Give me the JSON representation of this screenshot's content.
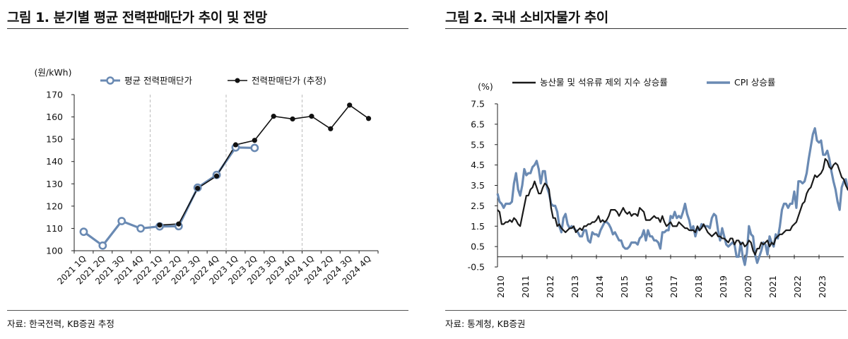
{
  "left": {
    "title": "그림 1. 분기별 평균 전력판매단가 추이 및 전망",
    "source": "자료: 한국전력, KB증권 추정",
    "chart_data": {
      "type": "line",
      "unit_label": "(원/kWh)",
      "categories": [
        "2021 1Q",
        "2021 2Q",
        "2021 3Q",
        "2021 4Q",
        "2022 1Q",
        "2022 2Q",
        "2022 3Q",
        "2022 4Q",
        "2023 1Q",
        "2023 2Q",
        "2023 3Q",
        "2023 4Q",
        "2024 1Q",
        "2024 2Q",
        "2024 3Q",
        "2024 4Q"
      ],
      "ylim": [
        100,
        170
      ],
      "yticks": [
        100,
        110,
        120,
        130,
        140,
        150,
        160,
        170
      ],
      "vlines_after_index": [
        3,
        7,
        11
      ],
      "series": [
        {
          "name": "평균 전력판매단가",
          "color": "#6a8ab3",
          "values": [
            108.5,
            102.3,
            113.3,
            110.0,
            110.9,
            111.0,
            128.3,
            134.0,
            146.3,
            146.1,
            null,
            null,
            null,
            null,
            null,
            null
          ]
        },
        {
          "name": "전력판매단가 (추정)",
          "color": "#111111",
          "values": [
            null,
            null,
            null,
            null,
            111.5,
            112.0,
            128.0,
            133.5,
            147.5,
            149.5,
            160.3,
            159.1,
            160.3,
            154.7,
            165.3,
            159.3
          ]
        }
      ]
    }
  },
  "right": {
    "title": "그림 2. 국내 소비자물가 추이",
    "source": "자료: 통계청, KB증권",
    "chart_data": {
      "type": "line",
      "unit_label": "(%)",
      "x_start": "2010-01",
      "x_step": "month",
      "x_labels": [
        "2010",
        "2011",
        "2012",
        "2013",
        "2014",
        "2015",
        "2016",
        "2017",
        "2018",
        "2019",
        "2020",
        "2021",
        "2022",
        "2023"
      ],
      "ylim": [
        -0.5,
        7.5
      ],
      "yticks": [
        "-0.5",
        "0.5",
        "1.5",
        "2.5",
        "3.5",
        "4.5",
        "5.5",
        "6.5",
        "7.5"
      ],
      "series": [
        {
          "name": "CPI 상승률",
          "color": "#6a8ab3",
          "values": [
            3.1,
            2.7,
            2.6,
            2.4,
            2.6,
            2.6,
            2.6,
            2.7,
            3.6,
            4.1,
            3.3,
            3.0,
            3.5,
            4.3,
            4.0,
            4.1,
            4.1,
            4.4,
            4.5,
            4.7,
            4.3,
            3.6,
            4.2,
            4.2,
            3.4,
            3.1,
            2.6,
            2.5,
            2.5,
            2.2,
            1.5,
            1.2,
            1.9,
            2.1,
            1.6,
            1.4,
            1.5,
            1.4,
            1.3,
            1.2,
            1.0,
            1.0,
            1.3,
            1.3,
            0.8,
            0.7,
            1.2,
            1.1,
            1.1,
            1.0,
            1.3,
            1.5,
            1.7,
            1.7,
            1.6,
            1.4,
            1.1,
            1.2,
            1.0,
            0.8,
            0.8,
            0.5,
            0.4,
            0.4,
            0.5,
            0.7,
            0.7,
            0.7,
            0.6,
            0.9,
            1.0,
            1.3,
            0.8,
            1.3,
            1.0,
            1.0,
            0.8,
            0.8,
            0.7,
            0.4,
            1.2,
            1.2,
            1.3,
            1.3,
            2.0,
            1.9,
            2.2,
            1.9,
            2.0,
            1.9,
            2.2,
            2.6,
            2.1,
            1.8,
            1.3,
            1.5,
            1.0,
            1.4,
            1.3,
            1.6,
            1.5,
            1.5,
            1.5,
            1.4,
            1.9,
            2.1,
            2.0,
            1.3,
            0.8,
            1.4,
            1.0,
            0.6,
            0.5,
            0.6,
            0.7,
            0.6,
            0.0,
            -0.0,
            0.7,
            0.0,
            -0.4,
            0.2,
            1.5,
            1.1,
            1.0,
            0.1,
            -0.3,
            0.0,
            0.3,
            0.7,
            0.6,
            0.1,
            1.0,
            0.7,
            0.5,
            1.1,
            0.9,
            1.5,
            2.3,
            2.6,
            2.6,
            2.4,
            2.6,
            2.6,
            3.2,
            2.4,
            3.7,
            3.7,
            3.6,
            3.7,
            4.1,
            4.8,
            5.4,
            6.0,
            6.3,
            5.7,
            5.6,
            5.7,
            5.0,
            5.0,
            5.2,
            4.8,
            4.2,
            3.7,
            3.3,
            2.7,
            2.3,
            3.4,
            3.7,
            3.8,
            3.3,
            3.2,
            3.7
          ]
        },
        {
          "name": "농산물 및 석유류 제외 지수 상승률",
          "color": "#1a1a1a",
          "values": [
            2.3,
            2.2,
            1.6,
            1.6,
            1.7,
            1.7,
            1.8,
            1.7,
            1.9,
            1.8,
            1.6,
            1.5,
            2.0,
            2.5,
            3.0,
            3.0,
            3.3,
            3.4,
            3.7,
            3.4,
            3.1,
            3.1,
            3.4,
            3.6,
            3.5,
            3.3,
            2.4,
            1.9,
            1.9,
            1.5,
            1.6,
            1.4,
            1.3,
            1.2,
            1.3,
            1.4,
            1.4,
            1.5,
            1.2,
            1.3,
            1.4,
            1.3,
            1.5,
            1.5,
            1.6,
            1.6,
            1.7,
            1.7,
            1.8,
            2.0,
            1.7,
            1.8,
            1.7,
            1.8,
            2.0,
            2.3,
            2.3,
            2.3,
            2.2,
            2.0,
            2.2,
            2.4,
            2.2,
            2.1,
            2.2,
            2.0,
            2.1,
            2.1,
            2.0,
            2.4,
            2.3,
            2.2,
            1.8,
            1.8,
            1.8,
            1.9,
            2.0,
            1.9,
            1.9,
            1.7,
            2.0,
            1.7,
            1.5,
            1.6,
            1.7,
            1.5,
            1.5,
            1.5,
            1.7,
            1.6,
            1.5,
            1.4,
            1.4,
            1.3,
            1.3,
            1.3,
            1.2,
            1.5,
            1.3,
            1.4,
            1.6,
            1.4,
            1.2,
            1.1,
            1.0,
            1.1,
            1.2,
            1.0,
            1.0,
            0.9,
            0.9,
            0.8,
            0.7,
            0.9,
            0.9,
            0.6,
            0.8,
            0.8,
            0.6,
            0.7,
            0.5,
            0.6,
            0.8,
            0.7,
            0.3,
            0.1,
            0.4,
            0.4,
            0.7,
            0.6,
            0.7,
            0.8,
            0.5,
            0.7,
            0.6,
            0.9,
            1.0,
            1.1,
            1.1,
            1.2,
            1.3,
            1.3,
            1.3,
            1.5,
            1.6,
            1.7,
            2.0,
            2.3,
            2.6,
            2.7,
            3.1,
            3.3,
            3.4,
            3.7,
            4.0,
            3.9,
            4.0,
            4.1,
            4.3,
            4.8,
            4.7,
            4.4,
            4.3,
            4.5,
            4.6,
            4.5,
            4.2,
            3.9,
            3.8,
            3.5,
            3.3,
            3.2,
            3.1,
            3.2,
            3.3,
            3.5,
            3.1,
            2.9,
            3.0
          ]
        }
      ]
    }
  }
}
